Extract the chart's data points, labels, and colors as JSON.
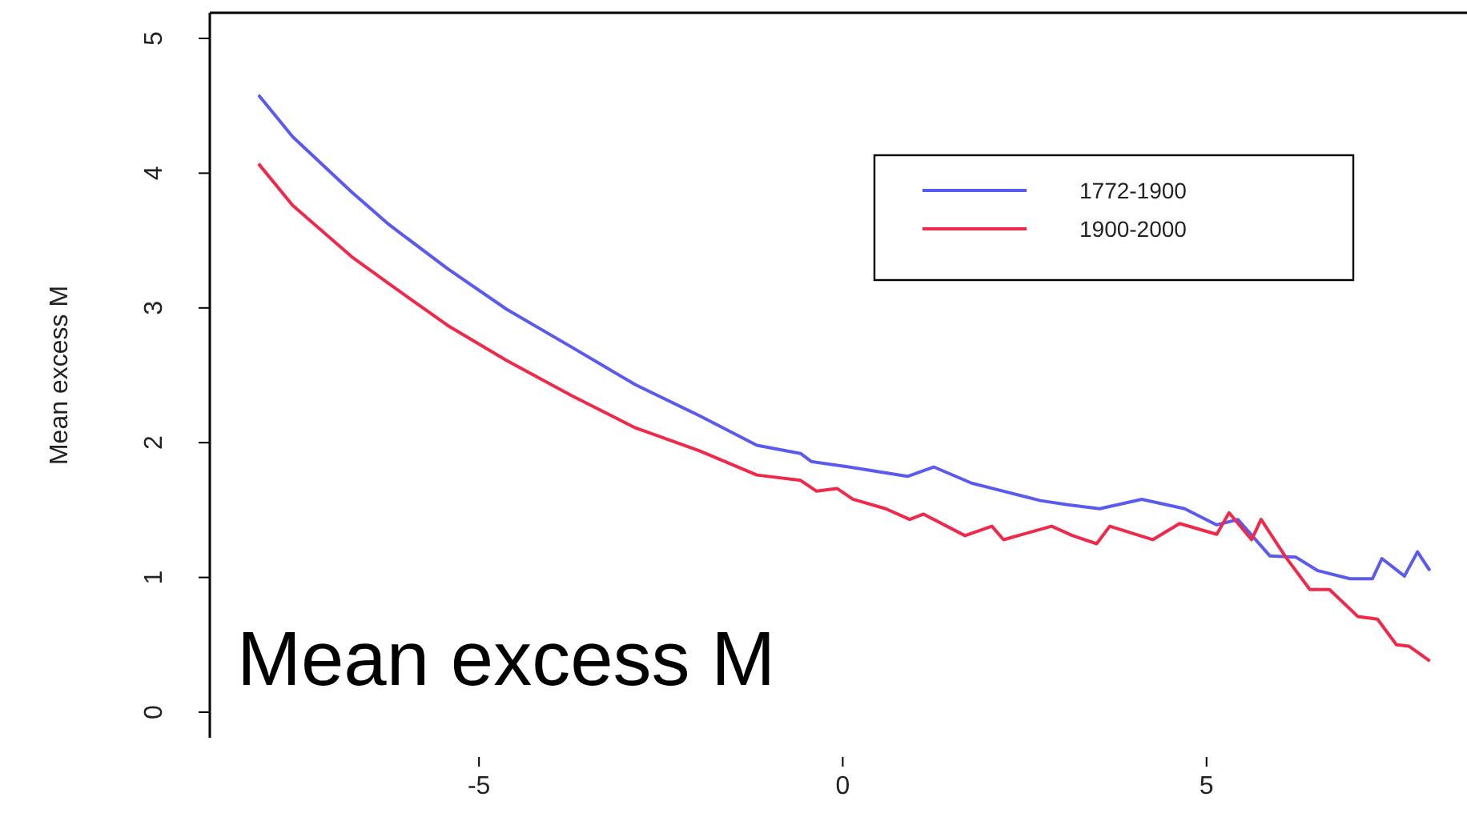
{
  "chart_data": {
    "type": "line",
    "ylabel": "Mean excess M",
    "annotations": [
      "Mean excess M"
    ],
    "xlim": [
      -8.7,
      8.58
    ],
    "ylim": [
      -0.19,
      5.19
    ],
    "xticks": [
      -5,
      0,
      5
    ],
    "yticks": [
      0,
      1,
      2,
      3,
      4,
      5
    ],
    "legend": "top right",
    "grid": false,
    "marker": "none",
    "line_style": "solid",
    "series": [
      {
        "name": "1772-1900",
        "color": "#5a5af0",
        "x": [
          -8.03,
          -7.56,
          -6.75,
          -6.24,
          -5.43,
          -4.62,
          -3.73,
          -2.85,
          -1.97,
          -1.18,
          -0.58,
          -0.43,
          0.08,
          0.89,
          1.25,
          1.77,
          2.21,
          2.72,
          3.09,
          3.53,
          4.11,
          4.7,
          5.14,
          5.43,
          5.87,
          6.23,
          6.53,
          6.97,
          7.28,
          7.41,
          7.72,
          7.9,
          8.07
        ],
        "values": [
          4.58,
          4.27,
          3.86,
          3.62,
          3.29,
          2.99,
          2.71,
          2.43,
          2.2,
          1.98,
          1.92,
          1.86,
          1.82,
          1.75,
          1.82,
          1.7,
          1.64,
          1.57,
          1.54,
          1.51,
          1.58,
          1.51,
          1.39,
          1.43,
          1.16,
          1.15,
          1.05,
          0.99,
          0.99,
          1.14,
          1.01,
          1.19,
          1.05
        ]
      },
      {
        "name": "1900-2000",
        "color": "#f0284a",
        "x": [
          -8.03,
          -7.56,
          -6.75,
          -6.24,
          -5.43,
          -4.62,
          -3.73,
          -2.85,
          -1.97,
          -1.18,
          -0.58,
          -0.36,
          -0.08,
          0.14,
          0.59,
          0.92,
          1.11,
          1.68,
          2.05,
          2.21,
          2.87,
          3.16,
          3.49,
          3.67,
          4.26,
          4.63,
          5.14,
          5.31,
          5.62,
          5.75,
          6.09,
          6.42,
          6.69,
          7.08,
          7.35,
          7.61,
          7.78,
          8.07
        ],
        "values": [
          4.07,
          3.76,
          3.38,
          3.18,
          2.87,
          2.61,
          2.35,
          2.11,
          1.94,
          1.76,
          1.72,
          1.64,
          1.66,
          1.58,
          1.51,
          1.43,
          1.47,
          1.31,
          1.38,
          1.28,
          1.38,
          1.31,
          1.25,
          1.38,
          1.28,
          1.4,
          1.32,
          1.48,
          1.28,
          1.43,
          1.15,
          0.91,
          0.91,
          0.71,
          0.69,
          0.5,
          0.49,
          0.38
        ]
      }
    ]
  }
}
